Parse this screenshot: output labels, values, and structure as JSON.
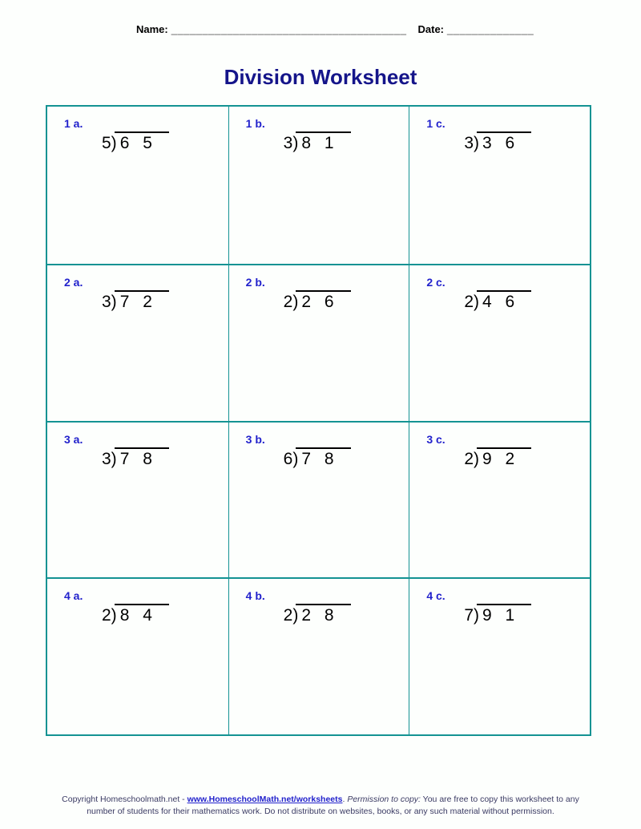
{
  "header": {
    "name_label": "Name:",
    "name_blank": "______________________________________",
    "date_label": "Date:",
    "date_blank": "______________"
  },
  "title": "Division Worksheet",
  "problems": [
    {
      "label": "1 a.",
      "divisor_display": "5)",
      "dividend_display": "6 5"
    },
    {
      "label": "1 b.",
      "divisor_display": "3)",
      "dividend_display": "8 1"
    },
    {
      "label": "1 c.",
      "divisor_display": "3)",
      "dividend_display": "3 6"
    },
    {
      "label": "2 a.",
      "divisor_display": "3)",
      "dividend_display": "7 2"
    },
    {
      "label": "2 b.",
      "divisor_display": "2)",
      "dividend_display": "2 6"
    },
    {
      "label": "2 c.",
      "divisor_display": "2)",
      "dividend_display": "4 6"
    },
    {
      "label": "3 a.",
      "divisor_display": "3)",
      "dividend_display": "7 8"
    },
    {
      "label": "3 b.",
      "divisor_display": "6)",
      "dividend_display": "7 8"
    },
    {
      "label": "3 c.",
      "divisor_display": "2)",
      "dividend_display": "9 2"
    },
    {
      "label": "4 a.",
      "divisor_display": "2)",
      "dividend_display": "8 4"
    },
    {
      "label": "4 b.",
      "divisor_display": "2)",
      "dividend_display": "2 8"
    },
    {
      "label": "4 c.",
      "divisor_display": "7)",
      "dividend_display": "9 1"
    }
  ],
  "footer": {
    "copyright_prefix": "Copyright Homeschoolmath.net - ",
    "link_text": "www.HomeschoolMath.net/worksheets",
    "after_link": ".  ",
    "permission_label": "Permission to copy:",
    "line1_rest": " You are free to copy this worksheet to any",
    "line2": "number of students for their mathematics work. Do not distribute on websites, books, or any such material without permission."
  },
  "colors": {
    "title": "#15158a",
    "label": "#2222cc",
    "border": "#149393",
    "footer": "#3a3a63",
    "link": "#2222cc"
  }
}
